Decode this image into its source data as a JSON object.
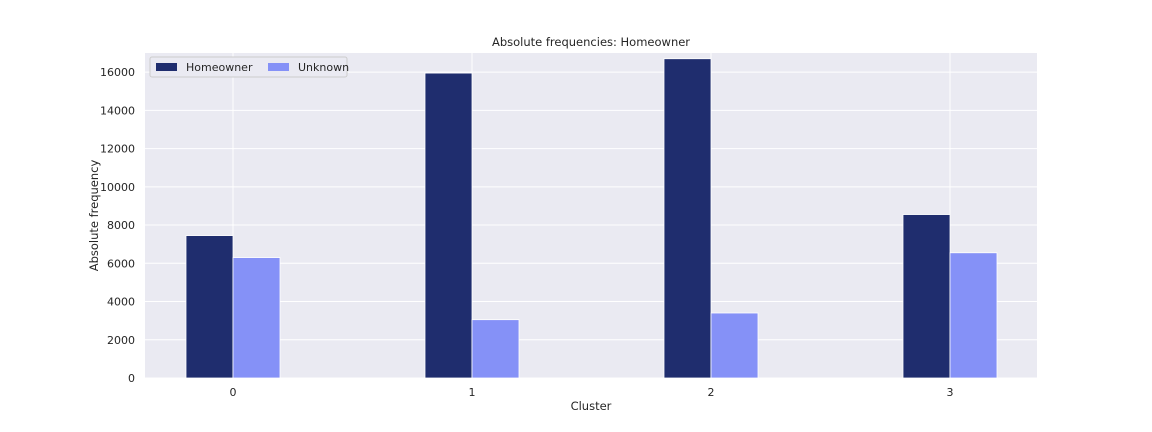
{
  "chart_data": {
    "type": "bar",
    "title": "Absolute frequencies: Homeowner",
    "xlabel": "Cluster",
    "ylabel": "Absolute frequency",
    "categories": [
      "0",
      "1",
      "2",
      "3"
    ],
    "series": [
      {
        "name": "Homeowner",
        "color": "#1f2d6e",
        "values": [
          7450,
          15950,
          16700,
          8550
        ]
      },
      {
        "name": "Unknown",
        "color": "#8591f7",
        "values": [
          6300,
          3050,
          3400,
          6550
        ]
      }
    ],
    "ylim": [
      0,
      17000
    ],
    "yticks": [
      0,
      2000,
      4000,
      6000,
      8000,
      10000,
      12000,
      14000,
      16000
    ],
    "grid": true,
    "background": "#eaeaf2",
    "legend_position": "top-left"
  }
}
